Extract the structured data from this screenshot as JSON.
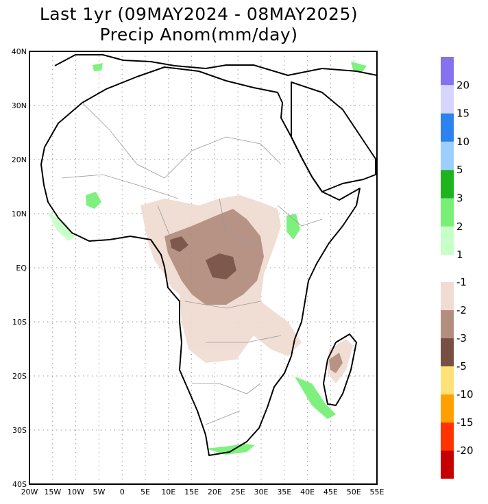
{
  "title": "Last 1yr (09MAY2024 - 08MAY2025)",
  "subtitle": "Precip Anom(mm/day)",
  "lat_labels": [
    "40N",
    "30N",
    "20N",
    "10N",
    "EQ",
    "10S",
    "20S",
    "30S",
    "40S"
  ],
  "lon_labels": [
    "20W",
    "15W",
    "10W",
    "5W",
    "0",
    "5E",
    "10E",
    "15E",
    "20E",
    "25E",
    "30E",
    "35E",
    "40E",
    "45E",
    "50E",
    "55E"
  ],
  "colorbar_wet": {
    "colors": [
      "#8472ee",
      "#d5d5ff",
      "#2b82f0",
      "#9ccffe",
      "#1eb41e",
      "#78f078",
      "#c8ffc8"
    ],
    "labels": [
      "20",
      "15",
      "10",
      "5",
      "3",
      "2",
      "1"
    ]
  },
  "colorbar_dry": {
    "colors": [
      "#f0dcd2",
      "#b38e7f",
      "#785043",
      "#ffe277",
      "#ffa000",
      "#ff3200",
      "#c40000"
    ],
    "labels": [
      "-1",
      "-2",
      "-3",
      "-5",
      "-10",
      "-15",
      "-20"
    ]
  }
}
